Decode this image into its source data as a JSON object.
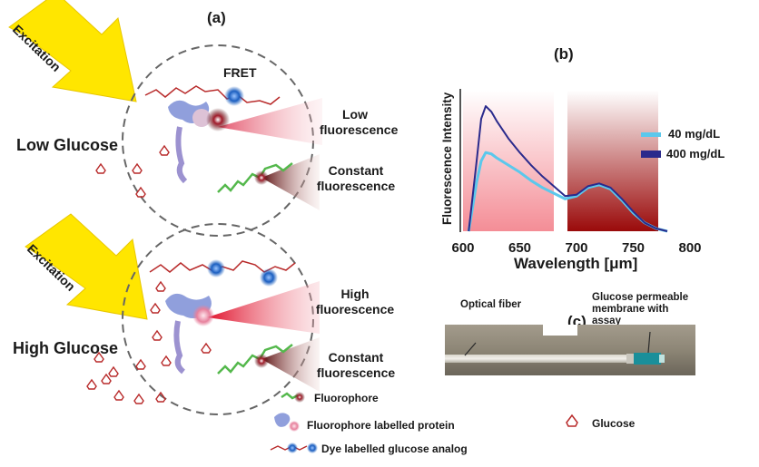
{
  "panels": {
    "a": "(a)",
    "b": "(b)",
    "c": "(c)"
  },
  "excitation_label": "Excitation",
  "fret_label": "FRET",
  "low_glucose": {
    "state_label": "Low Glucose",
    "fluorescence_label": "Low fluorescence",
    "constant_label": "Constant fluorescence"
  },
  "high_glucose": {
    "state_label": "High Glucose",
    "fluorescence_label": "High fluorescence",
    "constant_label": "Constant fluorescence"
  },
  "key": {
    "fluorophore": "Fluorophore",
    "labelled_protein": "Fluorophore labelled protein",
    "glucose_analog": "Dye  labelled glucose analog",
    "glucose": "Glucose"
  },
  "chart_data": {
    "type": "line",
    "title": "",
    "xlabel": "Wavelength [μm]",
    "ylabel": "Fluorescence Intensity",
    "xlim": [
      600,
      800
    ],
    "ylim": [
      0,
      1
    ],
    "xticks": [
      600,
      650,
      700,
      750,
      800
    ],
    "legend_position": "right",
    "colors": {
      "40 mg/dL": "#5bc8ec",
      "400 mg/dL": "#2a2a8c"
    },
    "series": [
      {
        "name": "40 mg/dL",
        "x": [
          605,
          612,
          616,
          620,
          625,
          630,
          640,
          650,
          660,
          670,
          680,
          690,
          700,
          710,
          720,
          730,
          740,
          750,
          760,
          770,
          780
        ],
        "y": [
          0.0,
          0.35,
          0.5,
          0.56,
          0.55,
          0.52,
          0.47,
          0.42,
          0.36,
          0.31,
          0.27,
          0.23,
          0.25,
          0.31,
          0.33,
          0.3,
          0.22,
          0.13,
          0.06,
          0.02,
          0.0
        ]
      },
      {
        "name": "400 mg/dL",
        "x": [
          605,
          612,
          616,
          620,
          625,
          630,
          640,
          650,
          660,
          670,
          680,
          690,
          700,
          710,
          720,
          730,
          740,
          750,
          760,
          770,
          780
        ],
        "y": [
          0.0,
          0.5,
          0.8,
          0.89,
          0.85,
          0.78,
          0.66,
          0.56,
          0.47,
          0.39,
          0.32,
          0.25,
          0.26,
          0.32,
          0.34,
          0.31,
          0.23,
          0.14,
          0.06,
          0.02,
          0.0
        ]
      }
    ]
  },
  "photo": {
    "optical_fiber_label": "Optical fiber",
    "membrane_label": "Glucose permeable membrane with assay"
  }
}
